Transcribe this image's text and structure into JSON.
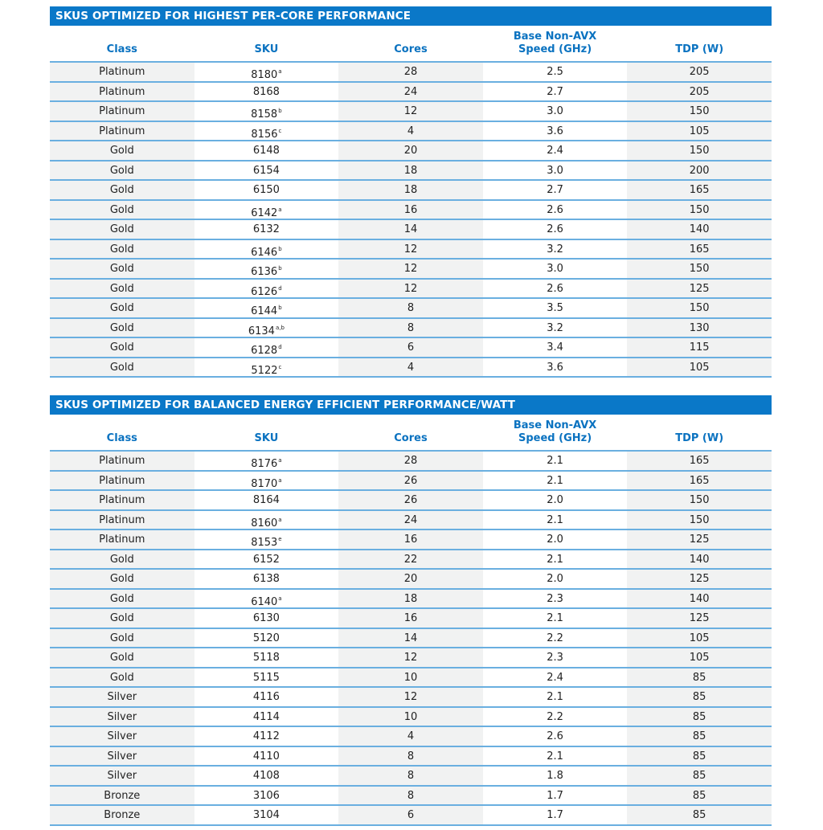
{
  "headers": [
    "Class",
    "SKU",
    "Cores",
    "Base Non-AVX\nSpeed (GHz)",
    "TDP (W)"
  ],
  "tables": [
    {
      "title": "SKUS OPTIMIZED FOR HIGHEST PER-CORE PERFORMANCE",
      "rows": [
        [
          "Platinum",
          "8180",
          "a",
          "28",
          "2.5",
          "205"
        ],
        [
          "Platinum",
          "8168",
          "",
          "24",
          "2.7",
          "205"
        ],
        [
          "Platinum",
          "8158",
          "b",
          "12",
          "3.0",
          "150"
        ],
        [
          "Platinum",
          "8156",
          "c",
          "4",
          "3.6",
          "105"
        ],
        [
          "Gold",
          "6148",
          "",
          "20",
          "2.4",
          "150"
        ],
        [
          "Gold",
          "6154",
          "",
          "18",
          "3.0",
          "200"
        ],
        [
          "Gold",
          "6150",
          "",
          "18",
          "2.7",
          "165"
        ],
        [
          "Gold",
          "6142",
          "a",
          "16",
          "2.6",
          "150"
        ],
        [
          "Gold",
          "6132",
          "",
          "14",
          "2.6",
          "140"
        ],
        [
          "Gold",
          "6146",
          "b",
          "12",
          "3.2",
          "165"
        ],
        [
          "Gold",
          "6136",
          "b",
          "12",
          "3.0",
          "150"
        ],
        [
          "Gold",
          "6126",
          "d",
          "12",
          "2.6",
          "125"
        ],
        [
          "Gold",
          "6144",
          "b",
          "8",
          "3.5",
          "150"
        ],
        [
          "Gold",
          "6134",
          "a,b",
          "8",
          "3.2",
          "130"
        ],
        [
          "Gold",
          "6128",
          "d",
          "6",
          "3.4",
          "115"
        ],
        [
          "Gold",
          "5122",
          "c",
          "4",
          "3.6",
          "105"
        ]
      ]
    },
    {
      "title": "SKUS OPTIMIZED FOR BALANCED ENERGY EFFICIENT PERFORMANCE/WATT",
      "rows": [
        [
          "Platinum",
          "8176",
          "a",
          "28",
          "2.1",
          "165"
        ],
        [
          "Platinum",
          "8170",
          "a",
          "26",
          "2.1",
          "165"
        ],
        [
          "Platinum",
          "8164",
          "",
          "26",
          "2.0",
          "150"
        ],
        [
          "Platinum",
          "8160",
          "a",
          "24",
          "2.1",
          "150"
        ],
        [
          "Platinum",
          "8153",
          "e",
          "16",
          "2.0",
          "125"
        ],
        [
          "Gold",
          "6152",
          "",
          "22",
          "2.1",
          "140"
        ],
        [
          "Gold",
          "6138",
          "",
          "20",
          "2.0",
          "125"
        ],
        [
          "Gold",
          "6140",
          "a",
          "18",
          "2.3",
          "140"
        ],
        [
          "Gold",
          "6130",
          "",
          "16",
          "2.1",
          "125"
        ],
        [
          "Gold",
          "5120",
          "",
          "14",
          "2.2",
          "105"
        ],
        [
          "Gold",
          "5118",
          "",
          "12",
          "2.3",
          "105"
        ],
        [
          "Gold",
          "5115",
          "",
          "10",
          "2.4",
          "85"
        ],
        [
          "Silver",
          "4116",
          "",
          "12",
          "2.1",
          "85"
        ],
        [
          "Silver",
          "4114",
          "",
          "10",
          "2.2",
          "85"
        ],
        [
          "Silver",
          "4112",
          "",
          "4",
          "2.6",
          "85"
        ],
        [
          "Silver",
          "4110",
          "",
          "8",
          "2.1",
          "85"
        ],
        [
          "Silver",
          "4108",
          "",
          "8",
          "1.8",
          "85"
        ],
        [
          "Bronze",
          "3106",
          "",
          "8",
          "1.7",
          "85"
        ],
        [
          "Bronze",
          "3104",
          "",
          "6",
          "1.7",
          "85"
        ]
      ]
    }
  ]
}
